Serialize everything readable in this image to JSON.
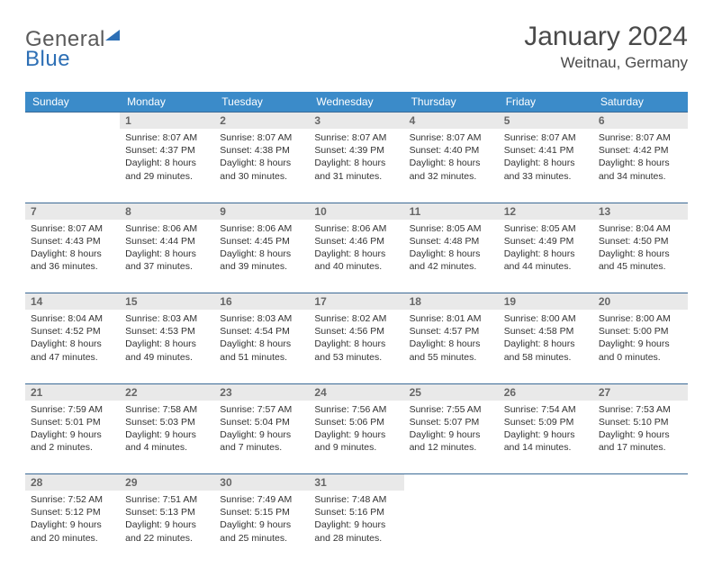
{
  "logo": {
    "general": "General",
    "blue": "Blue"
  },
  "title": "January 2024",
  "location": "Weitnau, Germany",
  "colors": {
    "header_bg": "#3b8bc9",
    "header_text": "#ffffff",
    "daynum_bg": "#e9e9e9",
    "daynum_text": "#666666",
    "border": "#3b6a96",
    "body_text": "#333333",
    "logo_gray": "#5a5a5a",
    "logo_blue": "#2d6fb5"
  },
  "weekdays": [
    "Sunday",
    "Monday",
    "Tuesday",
    "Wednesday",
    "Thursday",
    "Friday",
    "Saturday"
  ],
  "weeks": [
    [
      null,
      {
        "n": "1",
        "sr": "8:07 AM",
        "ss": "4:37 PM",
        "dl": "8 hours and 29 minutes."
      },
      {
        "n": "2",
        "sr": "8:07 AM",
        "ss": "4:38 PM",
        "dl": "8 hours and 30 minutes."
      },
      {
        "n": "3",
        "sr": "8:07 AM",
        "ss": "4:39 PM",
        "dl": "8 hours and 31 minutes."
      },
      {
        "n": "4",
        "sr": "8:07 AM",
        "ss": "4:40 PM",
        "dl": "8 hours and 32 minutes."
      },
      {
        "n": "5",
        "sr": "8:07 AM",
        "ss": "4:41 PM",
        "dl": "8 hours and 33 minutes."
      },
      {
        "n": "6",
        "sr": "8:07 AM",
        "ss": "4:42 PM",
        "dl": "8 hours and 34 minutes."
      }
    ],
    [
      {
        "n": "7",
        "sr": "8:07 AM",
        "ss": "4:43 PM",
        "dl": "8 hours and 36 minutes."
      },
      {
        "n": "8",
        "sr": "8:06 AM",
        "ss": "4:44 PM",
        "dl": "8 hours and 37 minutes."
      },
      {
        "n": "9",
        "sr": "8:06 AM",
        "ss": "4:45 PM",
        "dl": "8 hours and 39 minutes."
      },
      {
        "n": "10",
        "sr": "8:06 AM",
        "ss": "4:46 PM",
        "dl": "8 hours and 40 minutes."
      },
      {
        "n": "11",
        "sr": "8:05 AM",
        "ss": "4:48 PM",
        "dl": "8 hours and 42 minutes."
      },
      {
        "n": "12",
        "sr": "8:05 AM",
        "ss": "4:49 PM",
        "dl": "8 hours and 44 minutes."
      },
      {
        "n": "13",
        "sr": "8:04 AM",
        "ss": "4:50 PM",
        "dl": "8 hours and 45 minutes."
      }
    ],
    [
      {
        "n": "14",
        "sr": "8:04 AM",
        "ss": "4:52 PM",
        "dl": "8 hours and 47 minutes."
      },
      {
        "n": "15",
        "sr": "8:03 AM",
        "ss": "4:53 PM",
        "dl": "8 hours and 49 minutes."
      },
      {
        "n": "16",
        "sr": "8:03 AM",
        "ss": "4:54 PM",
        "dl": "8 hours and 51 minutes."
      },
      {
        "n": "17",
        "sr": "8:02 AM",
        "ss": "4:56 PM",
        "dl": "8 hours and 53 minutes."
      },
      {
        "n": "18",
        "sr": "8:01 AM",
        "ss": "4:57 PM",
        "dl": "8 hours and 55 minutes."
      },
      {
        "n": "19",
        "sr": "8:00 AM",
        "ss": "4:58 PM",
        "dl": "8 hours and 58 minutes."
      },
      {
        "n": "20",
        "sr": "8:00 AM",
        "ss": "5:00 PM",
        "dl": "9 hours and 0 minutes."
      }
    ],
    [
      {
        "n": "21",
        "sr": "7:59 AM",
        "ss": "5:01 PM",
        "dl": "9 hours and 2 minutes."
      },
      {
        "n": "22",
        "sr": "7:58 AM",
        "ss": "5:03 PM",
        "dl": "9 hours and 4 minutes."
      },
      {
        "n": "23",
        "sr": "7:57 AM",
        "ss": "5:04 PM",
        "dl": "9 hours and 7 minutes."
      },
      {
        "n": "24",
        "sr": "7:56 AM",
        "ss": "5:06 PM",
        "dl": "9 hours and 9 minutes."
      },
      {
        "n": "25",
        "sr": "7:55 AM",
        "ss": "5:07 PM",
        "dl": "9 hours and 12 minutes."
      },
      {
        "n": "26",
        "sr": "7:54 AM",
        "ss": "5:09 PM",
        "dl": "9 hours and 14 minutes."
      },
      {
        "n": "27",
        "sr": "7:53 AM",
        "ss": "5:10 PM",
        "dl": "9 hours and 17 minutes."
      }
    ],
    [
      {
        "n": "28",
        "sr": "7:52 AM",
        "ss": "5:12 PM",
        "dl": "9 hours and 20 minutes."
      },
      {
        "n": "29",
        "sr": "7:51 AM",
        "ss": "5:13 PM",
        "dl": "9 hours and 22 minutes."
      },
      {
        "n": "30",
        "sr": "7:49 AM",
        "ss": "5:15 PM",
        "dl": "9 hours and 25 minutes."
      },
      {
        "n": "31",
        "sr": "7:48 AM",
        "ss": "5:16 PM",
        "dl": "9 hours and 28 minutes."
      },
      null,
      null,
      null
    ]
  ],
  "labels": {
    "sunrise": "Sunrise:",
    "sunset": "Sunset:",
    "daylight": "Daylight:"
  }
}
